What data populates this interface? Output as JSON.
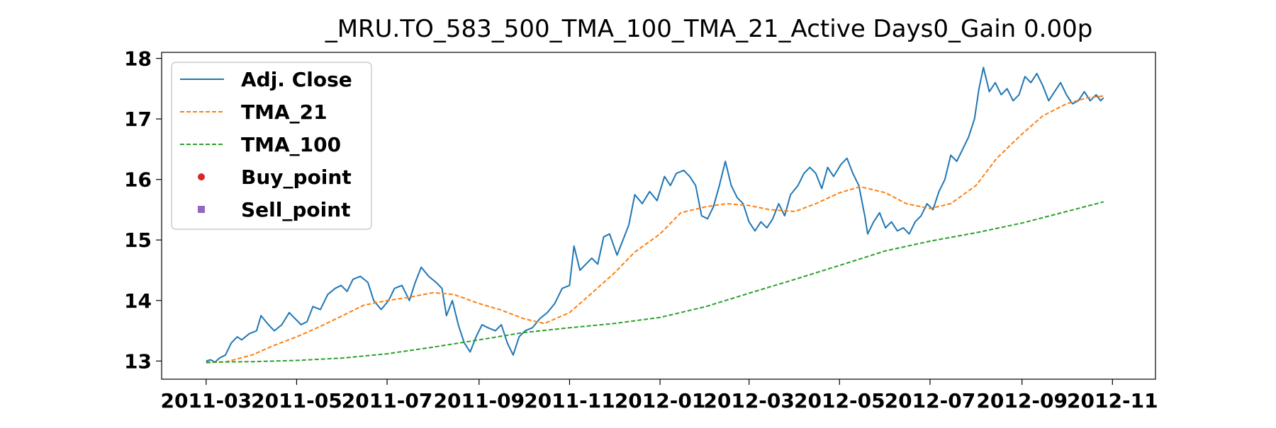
{
  "chart_data": {
    "type": "line",
    "title": "_MRU.TO_583_500_TMA_100_TMA_21_Active Days0_Gain   0.00p",
    "xlabel": "",
    "ylabel": "",
    "x_axis_type": "date",
    "xlim": [
      "2011-01-30",
      "2012-11-30"
    ],
    "ylim": [
      12.7,
      18.1
    ],
    "x_ticks": [
      "2011-03",
      "2011-05",
      "2011-07",
      "2011-09",
      "2011-11",
      "2012-01",
      "2012-03",
      "2012-05",
      "2012-07",
      "2012-09",
      "2012-11"
    ],
    "y_ticks": [
      13,
      14,
      15,
      16,
      17,
      18
    ],
    "grid": false,
    "legend_position": "top-left",
    "series": [
      {
        "name": "Adj. Close",
        "style": "solid",
        "color": "#1f77b4",
        "points": [
          [
            "2011-03-01",
            13.0
          ],
          [
            "2011-03-04",
            13.02
          ],
          [
            "2011-03-07",
            12.98
          ],
          [
            "2011-03-10",
            13.05
          ],
          [
            "2011-03-14",
            13.1
          ],
          [
            "2011-03-18",
            13.3
          ],
          [
            "2011-03-22",
            13.4
          ],
          [
            "2011-03-25",
            13.35
          ],
          [
            "2011-03-30",
            13.45
          ],
          [
            "2011-04-04",
            13.5
          ],
          [
            "2011-04-07",
            13.75
          ],
          [
            "2011-04-12",
            13.6
          ],
          [
            "2011-04-16",
            13.5
          ],
          [
            "2011-04-21",
            13.6
          ],
          [
            "2011-04-26",
            13.8
          ],
          [
            "2011-04-30",
            13.7
          ],
          [
            "2011-05-04",
            13.6
          ],
          [
            "2011-05-08",
            13.65
          ],
          [
            "2011-05-12",
            13.9
          ],
          [
            "2011-05-17",
            13.85
          ],
          [
            "2011-05-22",
            14.1
          ],
          [
            "2011-05-27",
            14.2
          ],
          [
            "2011-05-31",
            14.25
          ],
          [
            "2011-06-04",
            14.15
          ],
          [
            "2011-06-08",
            14.35
          ],
          [
            "2011-06-13",
            14.4
          ],
          [
            "2011-06-18",
            14.3
          ],
          [
            "2011-06-22",
            14.0
          ],
          [
            "2011-06-27",
            13.85
          ],
          [
            "2011-07-02",
            14.0
          ],
          [
            "2011-07-06",
            14.2
          ],
          [
            "2011-07-11",
            14.25
          ],
          [
            "2011-07-16",
            14.0
          ],
          [
            "2011-07-20",
            14.3
          ],
          [
            "2011-07-24",
            14.55
          ],
          [
            "2011-07-29",
            14.4
          ],
          [
            "2011-08-03",
            14.3
          ],
          [
            "2011-08-07",
            14.2
          ],
          [
            "2011-08-10",
            13.75
          ],
          [
            "2011-08-14",
            14.0
          ],
          [
            "2011-08-18",
            13.6
          ],
          [
            "2011-08-22",
            13.3
          ],
          [
            "2011-08-26",
            13.15
          ],
          [
            "2011-08-30",
            13.4
          ],
          [
            "2011-09-03",
            13.6
          ],
          [
            "2011-09-07",
            13.55
          ],
          [
            "2011-09-12",
            13.5
          ],
          [
            "2011-09-16",
            13.6
          ],
          [
            "2011-09-20",
            13.3
          ],
          [
            "2011-09-24",
            13.1
          ],
          [
            "2011-09-28",
            13.4
          ],
          [
            "2011-10-02",
            13.5
          ],
          [
            "2011-10-07",
            13.55
          ],
          [
            "2011-10-12",
            13.7
          ],
          [
            "2011-10-17",
            13.8
          ],
          [
            "2011-10-22",
            13.95
          ],
          [
            "2011-10-27",
            14.2
          ],
          [
            "2011-11-01",
            14.25
          ],
          [
            "2011-11-04",
            14.9
          ],
          [
            "2011-11-08",
            14.5
          ],
          [
            "2011-11-12",
            14.6
          ],
          [
            "2011-11-16",
            14.7
          ],
          [
            "2011-11-20",
            14.6
          ],
          [
            "2011-11-24",
            15.05
          ],
          [
            "2011-11-28",
            15.1
          ],
          [
            "2011-12-03",
            14.75
          ],
          [
            "2011-12-07",
            15.0
          ],
          [
            "2011-12-11",
            15.25
          ],
          [
            "2011-12-15",
            15.75
          ],
          [
            "2011-12-20",
            15.6
          ],
          [
            "2011-12-25",
            15.8
          ],
          [
            "2011-12-30",
            15.65
          ],
          [
            "2012-01-04",
            16.05
          ],
          [
            "2012-01-08",
            15.9
          ],
          [
            "2012-01-12",
            16.1
          ],
          [
            "2012-01-17",
            16.15
          ],
          [
            "2012-01-21",
            16.05
          ],
          [
            "2012-01-25",
            15.9
          ],
          [
            "2012-01-29",
            15.4
          ],
          [
            "2012-02-02",
            15.35
          ],
          [
            "2012-02-06",
            15.55
          ],
          [
            "2012-02-10",
            15.9
          ],
          [
            "2012-02-14",
            16.3
          ],
          [
            "2012-02-18",
            15.9
          ],
          [
            "2012-02-22",
            15.7
          ],
          [
            "2012-02-26",
            15.6
          ],
          [
            "2012-03-01",
            15.3
          ],
          [
            "2012-03-05",
            15.15
          ],
          [
            "2012-03-09",
            15.3
          ],
          [
            "2012-03-13",
            15.2
          ],
          [
            "2012-03-17",
            15.35
          ],
          [
            "2012-03-21",
            15.6
          ],
          [
            "2012-03-25",
            15.4
          ],
          [
            "2012-03-29",
            15.75
          ],
          [
            "2012-04-03",
            15.9
          ],
          [
            "2012-04-07",
            16.1
          ],
          [
            "2012-04-11",
            16.2
          ],
          [
            "2012-04-15",
            16.1
          ],
          [
            "2012-04-19",
            15.85
          ],
          [
            "2012-04-23",
            16.2
          ],
          [
            "2012-04-27",
            16.05
          ],
          [
            "2012-05-02",
            16.25
          ],
          [
            "2012-05-06",
            16.35
          ],
          [
            "2012-05-10",
            16.1
          ],
          [
            "2012-05-14",
            15.9
          ],
          [
            "2012-05-18",
            15.4
          ],
          [
            "2012-05-20",
            15.1
          ],
          [
            "2012-05-24",
            15.3
          ],
          [
            "2012-05-28",
            15.45
          ],
          [
            "2012-06-01",
            15.2
          ],
          [
            "2012-06-05",
            15.3
          ],
          [
            "2012-06-09",
            15.15
          ],
          [
            "2012-06-13",
            15.2
          ],
          [
            "2012-06-17",
            15.1
          ],
          [
            "2012-06-21",
            15.3
          ],
          [
            "2012-06-25",
            15.4
          ],
          [
            "2012-06-29",
            15.6
          ],
          [
            "2012-07-03",
            15.5
          ],
          [
            "2012-07-07",
            15.8
          ],
          [
            "2012-07-11",
            16.0
          ],
          [
            "2012-07-15",
            16.4
          ],
          [
            "2012-07-19",
            16.3
          ],
          [
            "2012-07-23",
            16.5
          ],
          [
            "2012-07-27",
            16.7
          ],
          [
            "2012-07-31",
            17.0
          ],
          [
            "2012-08-03",
            17.5
          ],
          [
            "2012-08-06",
            17.85
          ],
          [
            "2012-08-10",
            17.45
          ],
          [
            "2012-08-14",
            17.6
          ],
          [
            "2012-08-18",
            17.4
          ],
          [
            "2012-08-22",
            17.5
          ],
          [
            "2012-08-26",
            17.3
          ],
          [
            "2012-08-30",
            17.4
          ],
          [
            "2012-09-03",
            17.7
          ],
          [
            "2012-09-07",
            17.6
          ],
          [
            "2012-09-11",
            17.75
          ],
          [
            "2012-09-15",
            17.55
          ],
          [
            "2012-09-19",
            17.3
          ],
          [
            "2012-09-23",
            17.45
          ],
          [
            "2012-09-27",
            17.6
          ],
          [
            "2012-10-01",
            17.4
          ],
          [
            "2012-10-05",
            17.25
          ],
          [
            "2012-10-09",
            17.3
          ],
          [
            "2012-10-13",
            17.45
          ],
          [
            "2012-10-17",
            17.3
          ],
          [
            "2012-10-21",
            17.4
          ],
          [
            "2012-10-24",
            17.3
          ],
          [
            "2012-10-26",
            17.35
          ]
        ]
      },
      {
        "name": "TMA_21",
        "style": "dashed",
        "color": "#ff7f0e",
        "points": [
          [
            "2011-03-01",
            12.97
          ],
          [
            "2011-03-15",
            12.99
          ],
          [
            "2011-04-01",
            13.1
          ],
          [
            "2011-04-15",
            13.25
          ],
          [
            "2011-05-01",
            13.4
          ],
          [
            "2011-05-15",
            13.55
          ],
          [
            "2011-06-01",
            13.75
          ],
          [
            "2011-06-15",
            13.92
          ],
          [
            "2011-07-01",
            14.0
          ],
          [
            "2011-07-15",
            14.05
          ],
          [
            "2011-08-01",
            14.13
          ],
          [
            "2011-08-15",
            14.1
          ],
          [
            "2011-09-01",
            13.95
          ],
          [
            "2011-09-15",
            13.85
          ],
          [
            "2011-10-01",
            13.7
          ],
          [
            "2011-10-15",
            13.62
          ],
          [
            "2011-11-01",
            13.8
          ],
          [
            "2011-11-15",
            14.1
          ],
          [
            "2011-12-01",
            14.45
          ],
          [
            "2011-12-15",
            14.8
          ],
          [
            "2012-01-01",
            15.1
          ],
          [
            "2012-01-15",
            15.45
          ],
          [
            "2012-02-01",
            15.55
          ],
          [
            "2012-02-15",
            15.6
          ],
          [
            "2012-03-01",
            15.57
          ],
          [
            "2012-03-15",
            15.5
          ],
          [
            "2012-04-01",
            15.47
          ],
          [
            "2012-04-15",
            15.6
          ],
          [
            "2012-05-01",
            15.78
          ],
          [
            "2012-05-15",
            15.88
          ],
          [
            "2012-06-01",
            15.78
          ],
          [
            "2012-06-15",
            15.6
          ],
          [
            "2012-07-01",
            15.52
          ],
          [
            "2012-07-15",
            15.6
          ],
          [
            "2012-08-01",
            15.9
          ],
          [
            "2012-08-15",
            16.35
          ],
          [
            "2012-09-01",
            16.75
          ],
          [
            "2012-09-15",
            17.05
          ],
          [
            "2012-10-01",
            17.25
          ],
          [
            "2012-10-15",
            17.35
          ],
          [
            "2012-10-26",
            17.38
          ]
        ]
      },
      {
        "name": "TMA_100",
        "style": "dashed",
        "color": "#2ca02c",
        "points": [
          [
            "2011-03-01",
            12.98
          ],
          [
            "2011-04-01",
            12.99
          ],
          [
            "2011-05-01",
            13.01
          ],
          [
            "2011-06-01",
            13.05
          ],
          [
            "2011-07-01",
            13.12
          ],
          [
            "2011-08-01",
            13.23
          ],
          [
            "2011-09-01",
            13.35
          ],
          [
            "2011-10-01",
            13.47
          ],
          [
            "2011-11-01",
            13.55
          ],
          [
            "2011-12-01",
            13.62
          ],
          [
            "2012-01-01",
            13.72
          ],
          [
            "2012-02-01",
            13.9
          ],
          [
            "2012-03-01",
            14.12
          ],
          [
            "2012-04-01",
            14.35
          ],
          [
            "2012-05-01",
            14.58
          ],
          [
            "2012-06-01",
            14.82
          ],
          [
            "2012-07-01",
            14.98
          ],
          [
            "2012-08-01",
            15.12
          ],
          [
            "2012-09-01",
            15.28
          ],
          [
            "2012-10-01",
            15.47
          ],
          [
            "2012-10-26",
            15.63
          ]
        ]
      },
      {
        "name": "Buy_point",
        "style": "marker-circle",
        "color": "#d62728",
        "points": []
      },
      {
        "name": "Sell_point",
        "style": "marker-square",
        "color": "#9467bd",
        "points": []
      }
    ]
  }
}
